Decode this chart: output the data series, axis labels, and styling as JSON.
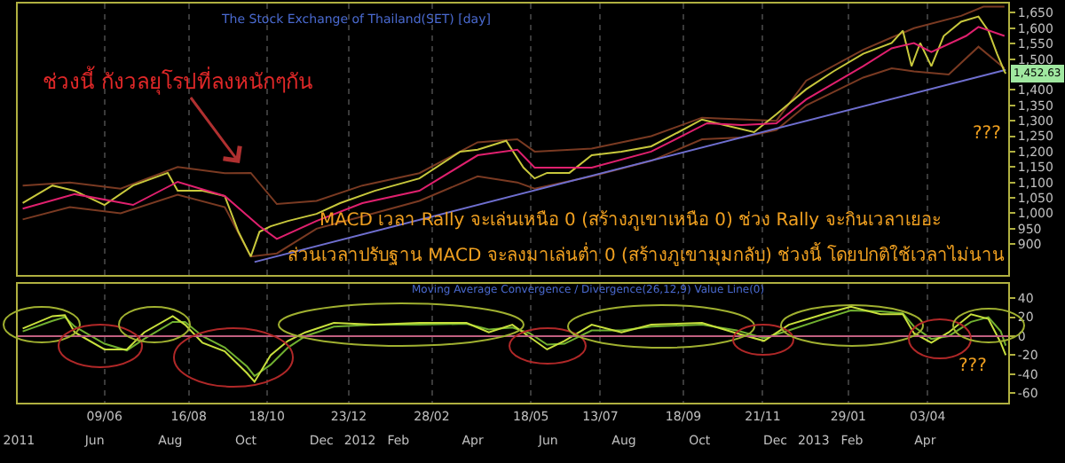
{
  "chart_data": [
    {
      "type": "line",
      "title": "The Stock Exchange of Thailand(SET) [day]",
      "annotations": [
        "ช่วงนี้ กังวลยุโรปที่ลงหนักๆกัน",
        "MACD เวลา Rally จะเล่นเหนือ 0 (สร้างภูเขาเหนือ 0) ช่วง Rally จะกินเวลาเยอะ",
        "ส่วนเวลาปรับฐาน MACD จะลงมาเล่นต่ำ 0 (สร้างภูเขามุมกลับ) ช่วงนี้ โดยปกติใช้เวลาไม่นาน",
        {
          "text": "1,452.63",
          "x": "2013-06-05",
          "y": 1452.63
        },
        "???"
      ],
      "xlim": [
        "2011-03-31",
        "2013-06-07"
      ],
      "xticks": [
        {
          "value": "2011-06-09",
          "label": null
        },
        {
          "value": "2011-08-16",
          "label": null
        },
        {
          "value": "2011-10-18",
          "label": null
        },
        {
          "value": "2011-12-23",
          "label": null
        },
        {
          "value": "2012-02-28",
          "label": null
        },
        {
          "value": "2012-05-18",
          "label": null
        },
        {
          "value": "2012-07-13",
          "label": null
        },
        {
          "value": "2012-09-18",
          "label": null
        },
        {
          "value": "2012-11-21",
          "label": null
        },
        {
          "value": "2013-01-29",
          "label": null
        },
        {
          "value": "2013-04-03",
          "label": null
        }
      ],
      "ylim": [
        800,
        1680
      ],
      "yticks": [
        {
          "value": 900,
          "label": "900"
        },
        {
          "value": 950,
          "label": "950"
        },
        {
          "value": 1000,
          "label": "1,000"
        },
        {
          "value": 1050,
          "label": "1,050"
        },
        {
          "value": 1100,
          "label": "1,100"
        },
        {
          "value": 1150,
          "label": "1,150"
        },
        {
          "value": 1200,
          "label": "1,200"
        },
        {
          "value": 1250,
          "label": "1,250"
        },
        {
          "value": 1300,
          "label": "1,300"
        },
        {
          "value": 1350,
          "label": "1,350"
        },
        {
          "value": 1400,
          "label": "1,400"
        },
        {
          "value": 1500,
          "label": "1,500"
        },
        {
          "value": 1550,
          "label": "1,550"
        },
        {
          "value": 1600,
          "label": "1,600"
        },
        {
          "value": 1650,
          "label": "1,650"
        }
      ],
      "tick_labels": "y",
      "grid": "x",
      "series": [
        {
          "color": "#7a3a22",
          "x": [
            "2011-04-04",
            "2011-05-12",
            "2011-06-22",
            "2011-08-07",
            "2011-09-14",
            "2011-10-05",
            "2011-10-26",
            "2011-11-27",
            "2012-01-03",
            "2012-02-18",
            "2012-04-05",
            "2012-05-07",
            "2012-05-21",
            "2012-07-06",
            "2012-08-23",
            "2012-10-03",
            "2012-12-02",
            "2012-12-26",
            "2013-02-10",
            "2013-03-05",
            "2013-03-23",
            "2013-04-30",
            "2013-05-18",
            "2013-06-04"
          ],
          "values": [
            1090,
            1100,
            1080,
            1150,
            1130,
            1131,
            1030,
            1040,
            1090,
            1130,
            1230,
            1240,
            1200,
            1210,
            1250,
            1310,
            1300,
            1430,
            1530,
            1570,
            1600,
            1640,
            1670,
            1670
          ]
        },
        {
          "color": "#7a3a22",
          "x": [
            "2011-04-04",
            "2011-05-12",
            "2011-06-22",
            "2011-08-07",
            "2011-09-14",
            "2011-10-05",
            "2011-10-26",
            "2011-11-27",
            "2012-01-03",
            "2012-02-18",
            "2012-04-05",
            "2012-05-07",
            "2012-05-21",
            "2012-07-06",
            "2012-08-23",
            "2012-10-03",
            "2012-11-04",
            "2012-12-02",
            "2012-12-26",
            "2013-02-10",
            "2013-03-05",
            "2013-03-23",
            "2013-04-20",
            "2013-05-14",
            "2013-06-04"
          ],
          "values": [
            980,
            1020,
            1000,
            1060,
            1020,
            860,
            870,
            950,
            990,
            1040,
            1120,
            1100,
            1080,
            1120,
            1170,
            1240,
            1246,
            1270,
            1350,
            1440,
            1470,
            1460,
            1450,
            1540,
            1470
          ]
        },
        {
          "color": "#6f6fd0",
          "x": [
            "2011-10-08",
            "2013-06-05"
          ],
          "values": [
            842,
            1465
          ]
        },
        {
          "color": "#c8c83c",
          "x": [
            "2011-04-04",
            "2011-04-28",
            "2011-05-16",
            "2011-06-09",
            "2011-07-02",
            "2011-07-30",
            "2011-08-07",
            "2011-08-27",
            "2011-09-14",
            "2011-09-25",
            "2011-10-05",
            "2011-10-12",
            "2011-10-21",
            "2011-11-04",
            "2011-11-27",
            "2011-12-16",
            "2012-01-13",
            "2012-02-18",
            "2012-03-22",
            "2012-04-05",
            "2012-04-28",
            "2012-05-12",
            "2012-05-21",
            "2012-05-31",
            "2012-06-18",
            "2012-07-06",
            "2012-07-30",
            "2012-08-23",
            "2012-09-14",
            "2012-10-03",
            "2012-10-21",
            "2012-11-14",
            "2012-12-02",
            "2012-12-26",
            "2013-01-17",
            "2013-02-10",
            "2013-03-05",
            "2013-03-14",
            "2013-03-21",
            "2013-03-28",
            "2013-04-06",
            "2013-04-16",
            "2013-04-30",
            "2013-05-14",
            "2013-05-22",
            "2013-05-29",
            "2013-06-04",
            "2013-06-05"
          ],
          "values": [
            1033,
            1090,
            1073,
            1027,
            1090,
            1131,
            1073,
            1073,
            1056,
            940,
            860,
            940,
            958,
            975,
            998,
            1033,
            1073,
            1113,
            1200,
            1206,
            1235,
            1148,
            1113,
            1131,
            1131,
            1188,
            1200,
            1217,
            1263,
            1304,
            1286,
            1263,
            1321,
            1402,
            1460,
            1517,
            1552,
            1592,
            1477,
            1552,
            1477,
            1575,
            1621,
            1638,
            1592,
            1517,
            1460,
            1452.63
          ]
        },
        {
          "color": "#e0206e",
          "x": [
            "2011-04-04",
            "2011-05-16",
            "2011-07-02",
            "2011-08-07",
            "2011-09-14",
            "2011-10-12",
            "2011-10-26",
            "2011-11-27",
            "2012-01-03",
            "2012-02-18",
            "2012-04-05",
            "2012-05-07",
            "2012-05-21",
            "2012-07-06",
            "2012-08-23",
            "2012-10-07",
            "2012-11-04",
            "2012-12-02",
            "2012-12-26",
            "2013-02-10",
            "2013-03-05",
            "2013-03-23",
            "2013-04-06",
            "2013-05-04",
            "2013-05-14",
            "2013-06-04"
          ],
          "values": [
            1015,
            1062,
            1027,
            1102,
            1056,
            958,
            917,
            975,
            1033,
            1073,
            1188,
            1206,
            1148,
            1148,
            1200,
            1292,
            1286,
            1292,
            1369,
            1477,
            1535,
            1552,
            1523,
            1575,
            1604,
            1575
          ]
        }
      ]
    },
    {
      "type": "line",
      "title": "Moving Average Convergence / Divergence(26,12,9) Value Line(0)",
      "annotations": [
        "???"
      ],
      "xlim": [
        "2011-03-31",
        "2013-06-07"
      ],
      "xticks": [
        {
          "value": "2011-04-01",
          "label": "2011"
        },
        {
          "value": "2011-06-01",
          "label": "Jun"
        },
        {
          "value": "2011-08-01",
          "label": "Aug"
        },
        {
          "value": "2011-10-01",
          "label": "Oct"
        },
        {
          "value": "2011-12-01",
          "label": "Dec"
        },
        {
          "value": "2012-01-01",
          "label": "2012"
        },
        {
          "value": "2012-02-01",
          "label": "Feb"
        },
        {
          "value": "2012-04-01",
          "label": "Apr"
        },
        {
          "value": "2012-06-01",
          "label": "Jun"
        },
        {
          "value": "2012-08-01",
          "label": "Aug"
        },
        {
          "value": "2012-10-01",
          "label": "Oct"
        },
        {
          "value": "2012-12-01",
          "label": "Dec"
        },
        {
          "value": "2013-01-01",
          "label": "2013"
        },
        {
          "value": "2013-02-01",
          "label": "Feb"
        },
        {
          "value": "2013-04-01",
          "label": "Apr"
        }
      ],
      "x2lim": [
        "2011-03-31",
        "2013-06-07"
      ],
      "x2ticks": [
        {
          "value": "2011-06-09",
          "label": "09/06"
        },
        {
          "value": "2011-08-16",
          "label": "16/08"
        },
        {
          "value": "2011-10-18",
          "label": "18/10"
        },
        {
          "value": "2011-12-23",
          "label": "23/12"
        },
        {
          "value": "2012-02-28",
          "label": "28/02"
        },
        {
          "value": "2012-05-18",
          "label": "18/05"
        },
        {
          "value": "2012-07-13",
          "label": "13/07"
        },
        {
          "value": "2012-09-18",
          "label": "18/09"
        },
        {
          "value": "2012-11-21",
          "label": "21/11"
        },
        {
          "value": "2013-01-29",
          "label": "29/01"
        },
        {
          "value": "2013-04-03",
          "label": "03/04"
        }
      ],
      "ylim": [
        -70,
        55
      ],
      "yticks": [
        -60,
        -40,
        -20,
        0,
        20,
        40
      ],
      "grid": "x",
      "ref_lines": [
        {
          "axis": "y",
          "value": 0,
          "color": "#c06080"
        }
      ],
      "series": [
        {
          "color": "#70b030",
          "x": [
            "2011-04-04",
            "2011-04-28",
            "2011-05-08",
            "2011-05-16",
            "2011-06-09",
            "2011-06-27",
            "2011-07-11",
            "2011-08-03",
            "2011-08-13",
            "2011-08-27",
            "2011-09-14",
            "2011-10-02",
            "2011-10-08",
            "2011-10-21",
            "2011-11-04",
            "2011-11-18",
            "2011-12-11",
            "2012-01-13",
            "2012-02-18",
            "2012-03-27",
            "2012-04-14",
            "2012-05-03",
            "2012-05-17",
            "2012-05-31",
            "2012-06-14",
            "2012-07-06",
            "2012-07-30",
            "2012-08-23",
            "2012-10-03",
            "2012-10-31",
            "2012-11-22",
            "2012-12-12",
            "2013-01-09",
            "2013-01-31",
            "2013-02-24",
            "2013-03-14",
            "2013-03-23",
            "2013-04-06",
            "2013-04-20",
            "2013-05-08",
            "2013-05-22",
            "2013-06-01",
            "2013-06-05"
          ],
          "values": [
            5,
            16,
            20,
            10,
            -8,
            -15,
            -3,
            15,
            15,
            0,
            -12,
            -32,
            -42,
            -30,
            -12,
            0,
            10,
            12,
            12,
            13,
            7,
            9,
            3,
            -9,
            -8,
            6,
            6,
            10,
            12,
            6,
            -2,
            6,
            18,
            27,
            26,
            24,
            10,
            -3,
            0,
            15,
            20,
            5,
            -10
          ]
        },
        {
          "color": "#c8e03c",
          "x": [
            "2011-04-04",
            "2011-04-28",
            "2011-05-08",
            "2011-05-16",
            "2011-06-09",
            "2011-06-27",
            "2011-07-11",
            "2011-08-03",
            "2011-08-13",
            "2011-08-27",
            "2011-09-14",
            "2011-10-02",
            "2011-10-08",
            "2011-10-21",
            "2011-11-04",
            "2011-11-18",
            "2011-12-11",
            "2012-01-13",
            "2012-02-18",
            "2012-03-27",
            "2012-04-14",
            "2012-05-03",
            "2012-05-17",
            "2012-05-31",
            "2012-06-14",
            "2012-07-06",
            "2012-07-30",
            "2012-08-23",
            "2012-10-03",
            "2012-10-31",
            "2012-11-22",
            "2012-12-12",
            "2013-01-09",
            "2013-01-31",
            "2013-02-24",
            "2013-03-14",
            "2013-03-23",
            "2013-04-06",
            "2013-04-20",
            "2013-05-08",
            "2013-05-22",
            "2013-06-01",
            "2013-06-05"
          ],
          "values": [
            8,
            21,
            22,
            4,
            -14,
            -14,
            4,
            21,
            12,
            -7,
            -16,
            -39,
            -48,
            -20,
            -5,
            4,
            14,
            12,
            14,
            14,
            4,
            12,
            -1,
            -14,
            -5,
            12,
            4,
            12,
            14,
            3,
            -5,
            12,
            23,
            31,
            23,
            23,
            3,
            -7,
            4,
            23,
            18,
            -7,
            -20
          ]
        }
      ]
    }
  ]
}
